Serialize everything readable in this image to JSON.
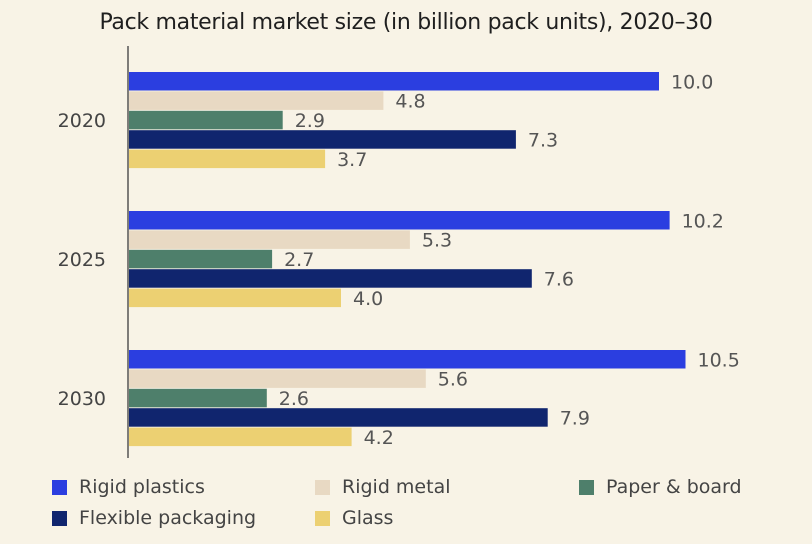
{
  "chart_data": {
    "type": "bar",
    "orientation": "horizontal",
    "title": "Pack material market size (in billion pack units), 2020–30",
    "categories": [
      "2020",
      "2025",
      "2030"
    ],
    "series": [
      {
        "name": "Rigid plastics",
        "color": "#2b3ee0",
        "values": [
          10.0,
          10.2,
          10.5
        ],
        "labels": [
          "10.0",
          "10.2",
          "10.5"
        ]
      },
      {
        "name": "Rigid metal",
        "color": "#e8d9c3",
        "values": [
          4.8,
          5.3,
          5.6
        ],
        "labels": [
          "4.8",
          "5.3",
          "5.6"
        ]
      },
      {
        "name": "Paper & board",
        "color": "#4e7f6b",
        "values": [
          2.9,
          2.7,
          2.6
        ],
        "labels": [
          "2.9",
          "2.7",
          "2.6"
        ]
      },
      {
        "name": "Flexible packaging",
        "color": "#10256e",
        "values": [
          7.3,
          7.6,
          7.9
        ],
        "labels": [
          "7.3",
          "7.6",
          "7.9"
        ]
      },
      {
        "name": "Glass",
        "color": "#ecd072",
        "values": [
          3.7,
          4.0,
          4.2
        ],
        "labels": [
          "3.7",
          "4.0",
          "4.2"
        ]
      }
    ],
    "xlim": [
      0,
      10.5
    ],
    "grid": false,
    "legend_position": "bottom"
  }
}
